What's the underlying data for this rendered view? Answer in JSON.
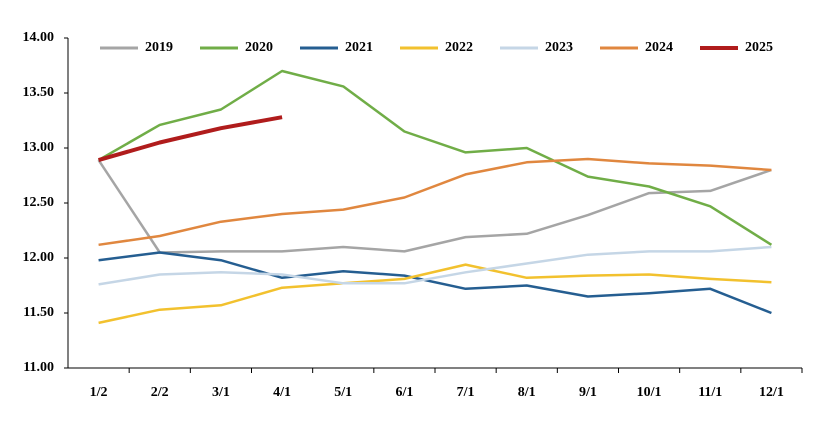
{
  "chart_data": {
    "type": "line",
    "categories": [
      "1/2",
      "2/2",
      "3/1",
      "4/1",
      "5/1",
      "6/1",
      "7/1",
      "8/1",
      "9/1",
      "10/1",
      "11/1",
      "12/1"
    ],
    "series": [
      {
        "name": "2019",
        "color": "#a5a5a5",
        "values": [
          12.89,
          12.05,
          12.06,
          12.06,
          12.1,
          12.06,
          12.19,
          12.22,
          12.39,
          12.59,
          12.61,
          12.8
        ]
      },
      {
        "name": "2020",
        "color": "#70ad47",
        "values": [
          12.89,
          13.21,
          13.35,
          13.7,
          13.56,
          13.15,
          12.96,
          13.0,
          12.74,
          12.65,
          12.47,
          12.12
        ]
      },
      {
        "name": "2021",
        "color": "#255e91",
        "values": [
          11.98,
          12.05,
          11.98,
          11.82,
          11.88,
          11.84,
          11.72,
          11.75,
          11.65,
          11.68,
          11.72,
          11.5
        ]
      },
      {
        "name": "2022",
        "color": "#f2c12e",
        "values": [
          11.41,
          11.53,
          11.57,
          11.73,
          11.77,
          11.81,
          11.94,
          11.82,
          11.84,
          11.85,
          11.81,
          11.78
        ]
      },
      {
        "name": "2023",
        "color": "#c5d6e6",
        "values": [
          11.76,
          11.85,
          11.87,
          11.85,
          11.77,
          11.77,
          11.87,
          11.95,
          12.03,
          12.06,
          12.06,
          12.1
        ]
      },
      {
        "name": "2024",
        "color": "#e0873f",
        "values": [
          12.12,
          12.2,
          12.33,
          12.4,
          12.44,
          12.55,
          12.76,
          12.87,
          12.9,
          12.86,
          12.84,
          12.8
        ]
      },
      {
        "name": "2025",
        "color": "#b01c1c",
        "values": [
          12.89,
          13.05,
          13.18,
          13.28,
          null,
          null,
          null,
          null,
          null,
          null,
          null,
          null
        ]
      }
    ],
    "ylim": [
      11,
      14
    ],
    "yticks": [
      {
        "value": 11,
        "label": "11.00"
      },
      {
        "value": 11.5,
        "label": "11.50"
      },
      {
        "value": 12,
        "label": "12.00"
      },
      {
        "value": 12.5,
        "label": "12.50"
      },
      {
        "value": 13,
        "label": "13.00"
      },
      {
        "value": 13.5,
        "label": "13.50"
      },
      {
        "value": 14,
        "label": "14.00"
      }
    ],
    "grid": false,
    "legend": "top"
  }
}
